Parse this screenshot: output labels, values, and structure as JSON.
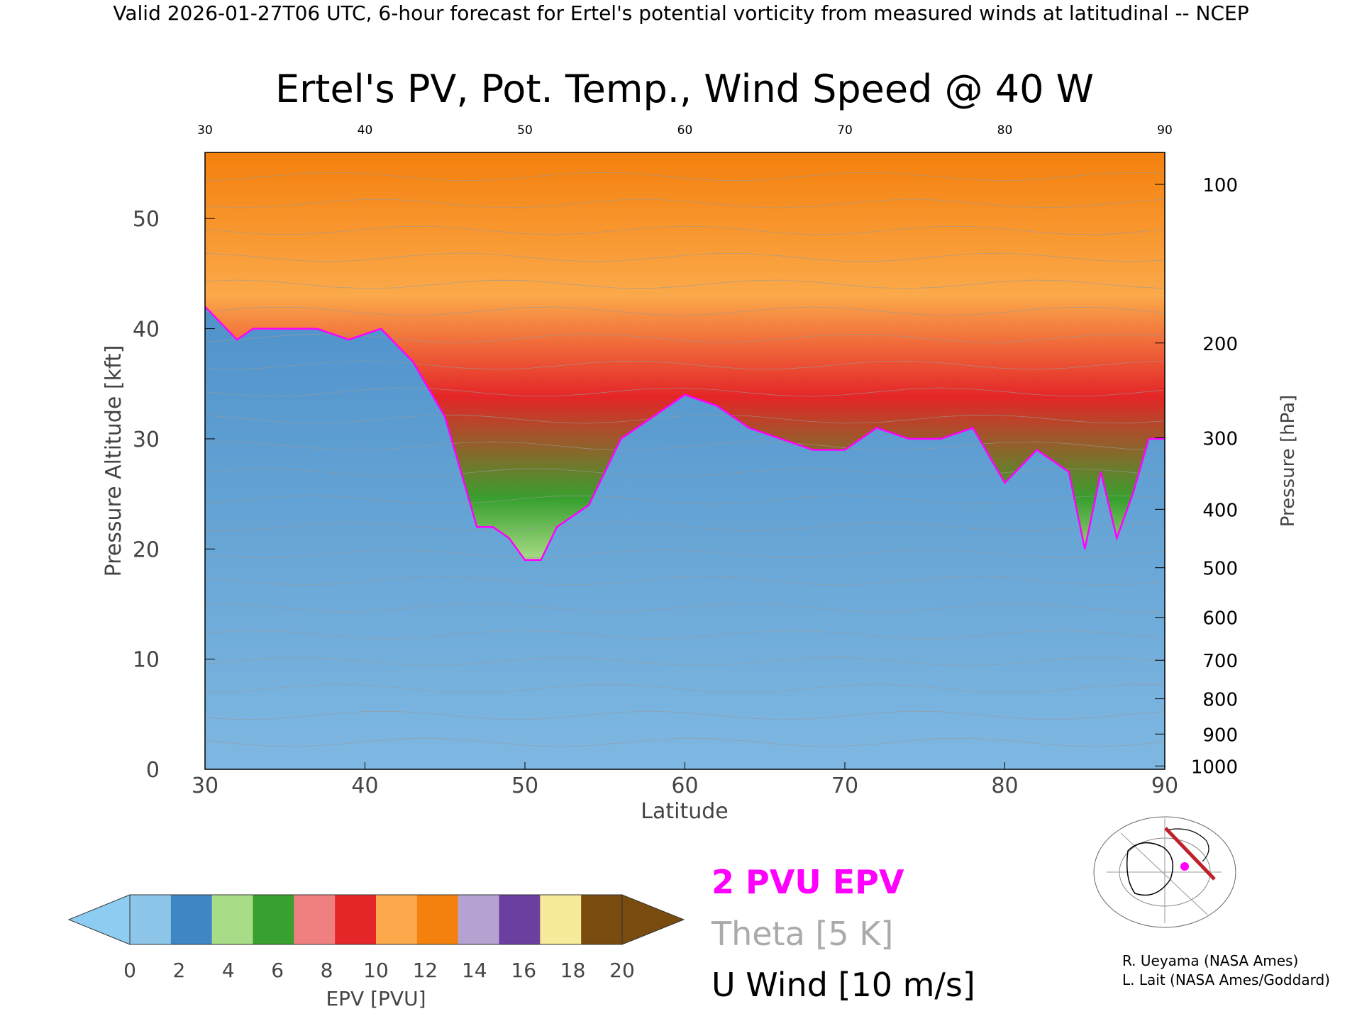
{
  "header": "Valid 2026-01-27T06 UTC, 6-hour forecast for Ertel's potential vorticity from measured winds at latitudinal -- NCEP",
  "chart_data": {
    "type": "heatmap",
    "title": "Ertel's PV, Pot. Temp., Wind Speed @ 40 W",
    "xlabel": "Latitude",
    "ylabel_left": "Pressure Altitude [kft]",
    "ylabel_right": "Pressure [hPa]",
    "xlim": [
      30,
      90
    ],
    "ylim": [
      0,
      56
    ],
    "x_ticks": [
      30,
      40,
      50,
      60,
      70,
      80,
      90
    ],
    "top_ticks": [
      30,
      40,
      50,
      60,
      70,
      80,
      90
    ],
    "y_ticks": [
      0,
      10,
      20,
      30,
      40,
      50
    ],
    "pressure_ticks": [
      {
        "label": "100",
        "kft": 53.1
      },
      {
        "label": "200",
        "kft": 38.7
      },
      {
        "label": "300",
        "kft": 30.1
      },
      {
        "label": "400",
        "kft": 23.6
      },
      {
        "label": "500",
        "kft": 18.3
      },
      {
        "label": "600",
        "kft": 13.8
      },
      {
        "label": "700",
        "kft": 9.9
      },
      {
        "label": "800",
        "kft": 6.4
      },
      {
        "label": "900",
        "kft": 3.2
      },
      {
        "label": "1000",
        "kft": 0.3
      }
    ],
    "tropopause_2pvu_kft": [
      [
        30,
        42
      ],
      [
        32,
        39
      ],
      [
        33,
        40
      ],
      [
        35,
        40
      ],
      [
        37,
        40
      ],
      [
        39,
        39
      ],
      [
        41,
        40
      ],
      [
        43,
        37
      ],
      [
        45,
        32
      ],
      [
        46,
        27
      ],
      [
        47,
        22
      ],
      [
        48,
        22
      ],
      [
        49,
        21
      ],
      [
        50,
        19
      ],
      [
        51,
        19
      ],
      [
        52,
        22
      ],
      [
        54,
        24
      ],
      [
        56,
        30
      ],
      [
        58,
        32
      ],
      [
        60,
        34
      ],
      [
        62,
        33
      ],
      [
        64,
        31
      ],
      [
        66,
        30
      ],
      [
        68,
        29
      ],
      [
        70,
        29
      ],
      [
        72,
        31
      ],
      [
        74,
        30
      ],
      [
        76,
        30
      ],
      [
        78,
        31
      ],
      [
        80,
        26
      ],
      [
        82,
        29
      ],
      [
        84,
        27
      ],
      [
        85,
        20
      ],
      [
        86,
        27
      ],
      [
        87,
        21
      ],
      [
        88,
        25
      ],
      [
        89,
        30
      ],
      [
        90,
        30
      ]
    ],
    "pv_field": "Ertel's potential vorticity cross-section, blue below tropopause, green/red/orange/purple in stratosphere",
    "colorbar": {
      "label": "EPV [PVU]",
      "ticks": [
        "0",
        "2",
        "4",
        "6",
        "8",
        "10",
        "12",
        "14",
        "16",
        "18",
        "20"
      ],
      "colors": [
        "#8ec6ea",
        "#3f86c4",
        "#a8dc86",
        "#38a02e",
        "#f07f80",
        "#e42628",
        "#fba94a",
        "#f4800d",
        "#b4a2d0",
        "#6b3fa0",
        "#f5eb9a",
        "#7a4b0e"
      ],
      "under_color": "#8ecdf2",
      "over_color": "#7a4b0e"
    },
    "legend": [
      {
        "label": "2 PVU EPV",
        "color": "#ff00ff"
      },
      {
        "label": "Theta [5 K]",
        "color": "#aaaaaa"
      },
      {
        "label": "U Wind [10 m/s]",
        "color": "#000000"
      }
    ]
  },
  "credits": [
    "R. Ueyama (NASA Ames)",
    "L. Lait (NASA Ames/Goddard)"
  ]
}
